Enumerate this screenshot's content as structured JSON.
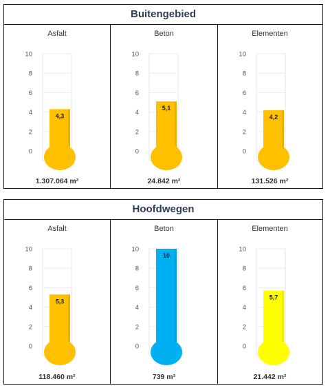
{
  "panels": [
    {
      "title": "Buitengebied",
      "cells": [
        {
          "label": "Asfalt",
          "value": 4.3,
          "value_label": "4,3",
          "color": "#FFC000",
          "area": "1.307.064 m²"
        },
        {
          "label": "Beton",
          "value": 5.1,
          "value_label": "5,1",
          "color": "#FFC000",
          "area": "24.842 m²"
        },
        {
          "label": "Elementen",
          "value": 4.2,
          "value_label": "4,2",
          "color": "#FFC000",
          "area": "131.526 m²"
        }
      ]
    },
    {
      "title": "Hoofdwegen",
      "cells": [
        {
          "label": "Asfalt",
          "value": 5.3,
          "value_label": "5,3",
          "color": "#FFC000",
          "area": "118.460 m²"
        },
        {
          "label": "Beton",
          "value": 10,
          "value_label": "10",
          "color": "#00B0F0",
          "area": "739 m²"
        },
        {
          "label": "Elementen",
          "value": 5.7,
          "value_label": "5,7",
          "color": "#FFFF00",
          "area": "21.442 m²"
        }
      ]
    }
  ],
  "chart_data": [
    {
      "type": "bar",
      "title": "Buitengebied",
      "categories": [
        "Asfalt",
        "Beton",
        "Elementen"
      ],
      "values": [
        4.3,
        5.1,
        4.2
      ],
      "ylim": [
        0,
        10
      ],
      "yticks": [
        "0",
        "2",
        "4",
        "6",
        "8",
        "10"
      ],
      "areas": [
        "1.307.064 m²",
        "24.842 m²",
        "131.526 m²"
      ]
    },
    {
      "type": "bar",
      "title": "Hoofdwegen",
      "categories": [
        "Asfalt",
        "Beton",
        "Elementen"
      ],
      "values": [
        5.3,
        10,
        5.7
      ],
      "ylim": [
        0,
        10
      ],
      "yticks": [
        "0",
        "2",
        "4",
        "6",
        "8",
        "10"
      ],
      "areas": [
        "118.460 m²",
        "739 m²",
        "21.442 m²"
      ]
    }
  ]
}
